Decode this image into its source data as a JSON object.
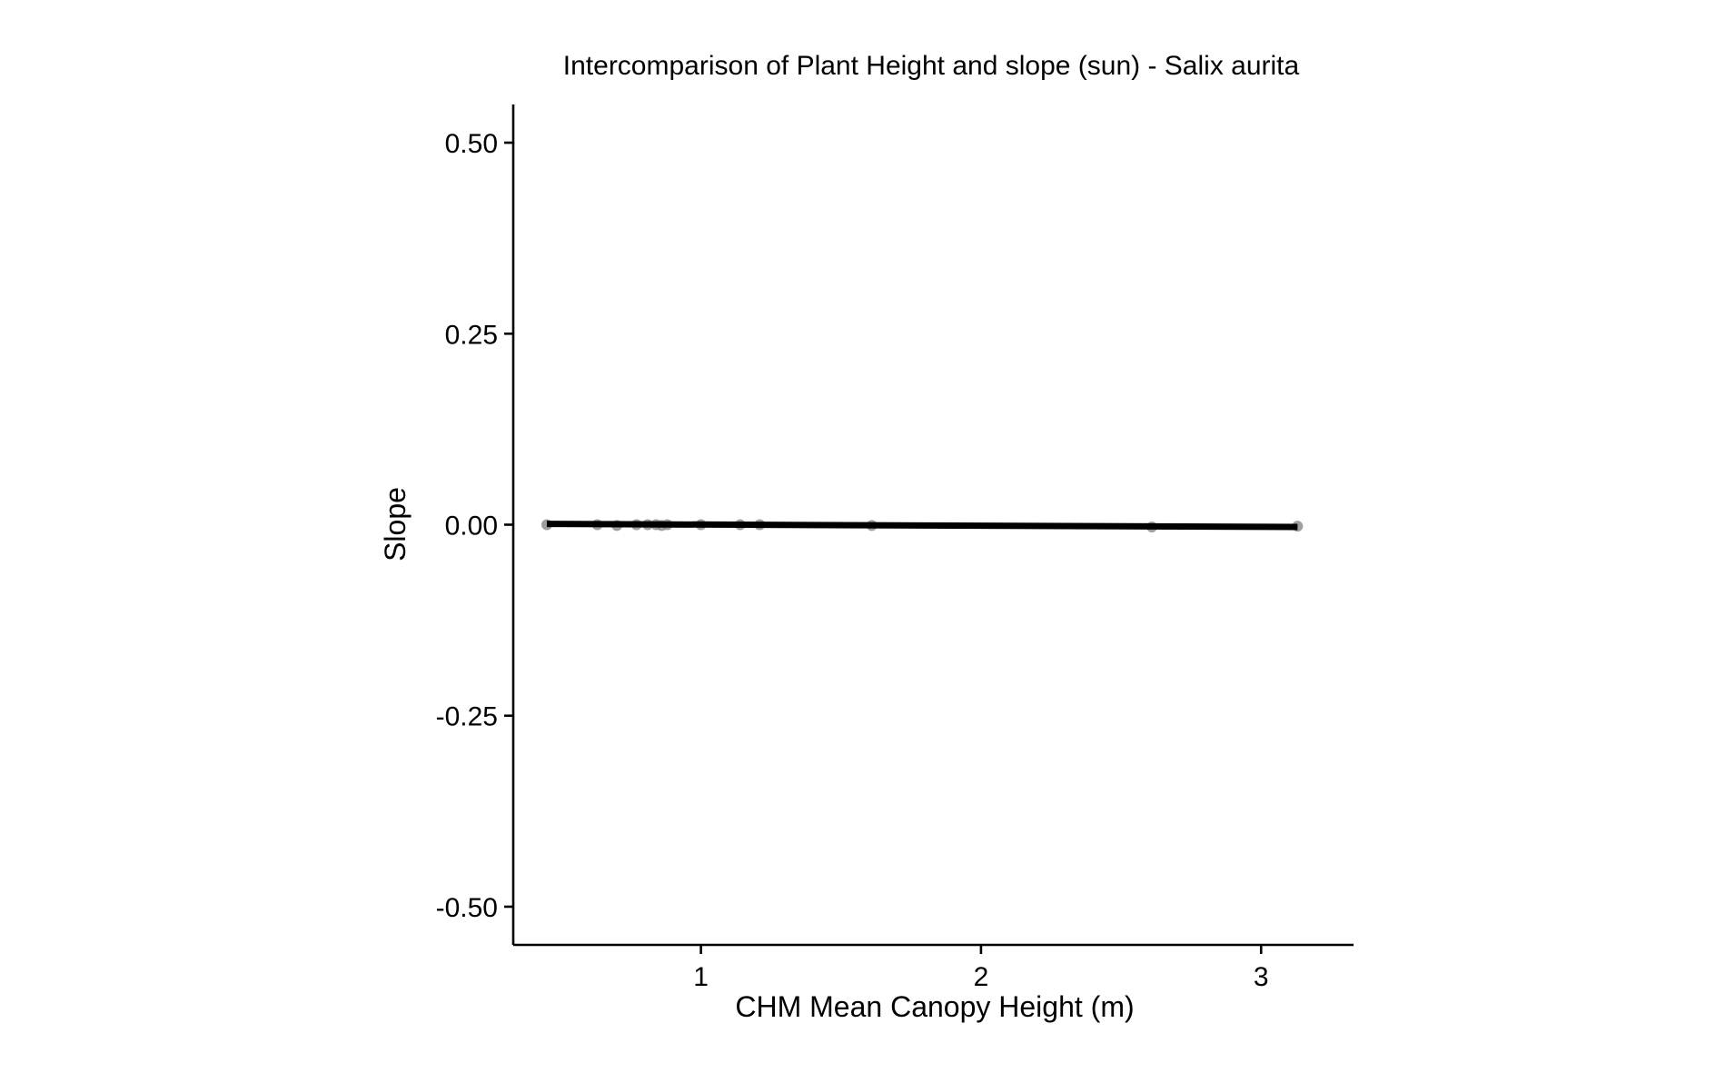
{
  "chart_data": {
    "type": "scatter",
    "title": "Intercomparison of Plant Height and slope (sun) - Salix aurita",
    "xlabel": "CHM Mean Canopy Height (m)",
    "ylabel": "Slope",
    "xlim": [
      0.33,
      3.33
    ],
    "ylim": [
      -0.55,
      0.55
    ],
    "x_ticks": [
      1,
      2,
      3
    ],
    "y_ticks": [
      -0.5,
      -0.25,
      0.0,
      0.25,
      0.5
    ],
    "x_tick_labels": [
      "1",
      "2",
      "3"
    ],
    "y_tick_labels": [
      "-0.50",
      "-0.25",
      "0.00",
      "0.25",
      "0.50"
    ],
    "grid": false,
    "legend": "none",
    "colors": {
      "points": "#7f7f7f",
      "fit_line": "#000000",
      "axes": "#000000"
    },
    "points": [
      {
        "x": 0.45,
        "y": 0.0
      },
      {
        "x": 0.63,
        "y": 0.0
      },
      {
        "x": 0.7,
        "y": -0.001
      },
      {
        "x": 0.77,
        "y": 0.0
      },
      {
        "x": 0.81,
        "y": 0.0
      },
      {
        "x": 0.84,
        "y": 0.0
      },
      {
        "x": 0.86,
        "y": -0.001
      },
      {
        "x": 0.88,
        "y": 0.0
      },
      {
        "x": 1.0,
        "y": 0.0
      },
      {
        "x": 1.14,
        "y": 0.0
      },
      {
        "x": 1.21,
        "y": 0.0
      },
      {
        "x": 1.61,
        "y": -0.001
      },
      {
        "x": 2.61,
        "y": -0.003
      },
      {
        "x": 3.13,
        "y": -0.002
      }
    ],
    "fit_line": {
      "x": [
        0.45,
        3.13
      ],
      "y": [
        0.001,
        -0.003
      ]
    }
  }
}
